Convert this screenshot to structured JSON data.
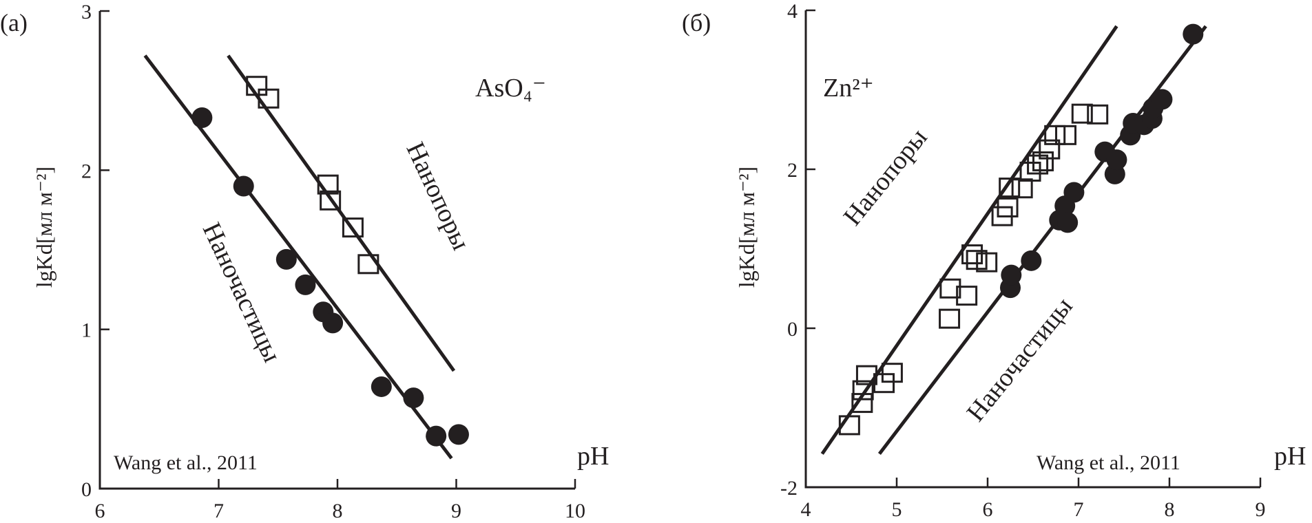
{
  "chart_data": [
    {
      "type": "scatter",
      "panel_label": "(а)",
      "annotation": "AsO₄⁻",
      "source": "Wang et al., 2011",
      "xlabel": "pH",
      "ylabel": "lgKd[мл м⁻²]",
      "xlim": [
        6,
        10
      ],
      "ylim": [
        0,
        3
      ],
      "xticks": [
        "6",
        "7",
        "8",
        "9",
        "10"
      ],
      "yticks": [
        "0",
        "1",
        "2",
        "3"
      ],
      "grid": false,
      "series": [
        {
          "name": "Нанопоры",
          "marker": "open-square",
          "points": [
            [
              7.32,
              2.53
            ],
            [
              7.42,
              2.45
            ],
            [
              7.92,
              1.91
            ],
            [
              7.94,
              1.81
            ],
            [
              8.13,
              1.64
            ],
            [
              8.26,
              1.41
            ]
          ],
          "fit": [
            [
              7.08,
              2.72
            ],
            [
              8.98,
              0.74
            ]
          ]
        },
        {
          "name": "Наночастицы",
          "marker": "filled-circle",
          "points": [
            [
              6.86,
              2.33
            ],
            [
              7.21,
              1.9
            ],
            [
              7.57,
              1.44
            ],
            [
              7.73,
              1.28
            ],
            [
              7.88,
              1.11
            ],
            [
              7.96,
              1.04
            ],
            [
              8.37,
              0.64
            ],
            [
              8.64,
              0.57
            ],
            [
              8.83,
              0.33
            ],
            [
              9.02,
              0.34
            ]
          ],
          "fit": [
            [
              6.38,
              2.72
            ],
            [
              8.96,
              0.19
            ]
          ]
        }
      ]
    },
    {
      "type": "scatter",
      "panel_label": "(б)",
      "annotation": "Zn²⁺",
      "source": "Wang et al., 2011",
      "xlabel": "pH",
      "ylabel": "lgKd[мл м⁻²]",
      "xlim": [
        4,
        9
      ],
      "ylim": [
        -2,
        4
      ],
      "xticks": [
        "4",
        "5",
        "6",
        "7",
        "8",
        "9"
      ],
      "yticks": [
        "-2",
        "0",
        "2",
        "4"
      ],
      "grid": false,
      "series": [
        {
          "name": "Нанопоры",
          "marker": "open-square",
          "points": [
            [
              4.48,
              -1.22
            ],
            [
              4.62,
              -0.94
            ],
            [
              4.63,
              -0.78
            ],
            [
              4.67,
              -0.59
            ],
            [
              4.86,
              -0.69
            ],
            [
              4.95,
              -0.56
            ],
            [
              5.58,
              0.12
            ],
            [
              5.59,
              0.5
            ],
            [
              5.77,
              0.41
            ],
            [
              5.83,
              0.93
            ],
            [
              5.88,
              0.86
            ],
            [
              5.99,
              0.83
            ],
            [
              6.16,
              1.41
            ],
            [
              6.22,
              1.52
            ],
            [
              6.24,
              1.77
            ],
            [
              6.38,
              1.76
            ],
            [
              6.47,
              1.97
            ],
            [
              6.55,
              2.06
            ],
            [
              6.61,
              2.1
            ],
            [
              6.68,
              2.25
            ],
            [
              6.74,
              2.43
            ],
            [
              6.86,
              2.43
            ],
            [
              7.04,
              2.7
            ],
            [
              7.21,
              2.69
            ]
          ],
          "fit": [
            [
              4.18,
              -1.58
            ],
            [
              7.42,
              3.8
            ]
          ]
        },
        {
          "name": "Наночастицы",
          "marker": "filled-circle",
          "points": [
            [
              6.25,
              0.51
            ],
            [
              6.26,
              0.67
            ],
            [
              6.48,
              0.85
            ],
            [
              6.79,
              1.36
            ],
            [
              6.85,
              1.54
            ],
            [
              6.88,
              1.33
            ],
            [
              6.95,
              1.71
            ],
            [
              7.29,
              2.22
            ],
            [
              7.4,
              1.94
            ],
            [
              7.42,
              2.12
            ],
            [
              7.57,
              2.43
            ],
            [
              7.6,
              2.58
            ],
            [
              7.72,
              2.56
            ],
            [
              7.81,
              2.64
            ],
            [
              7.82,
              2.77
            ],
            [
              7.92,
              2.88
            ],
            [
              8.26,
              3.7
            ]
          ],
          "fit": [
            [
              4.81,
              -1.58
            ],
            [
              8.4,
              3.8
            ]
          ]
        }
      ]
    }
  ]
}
